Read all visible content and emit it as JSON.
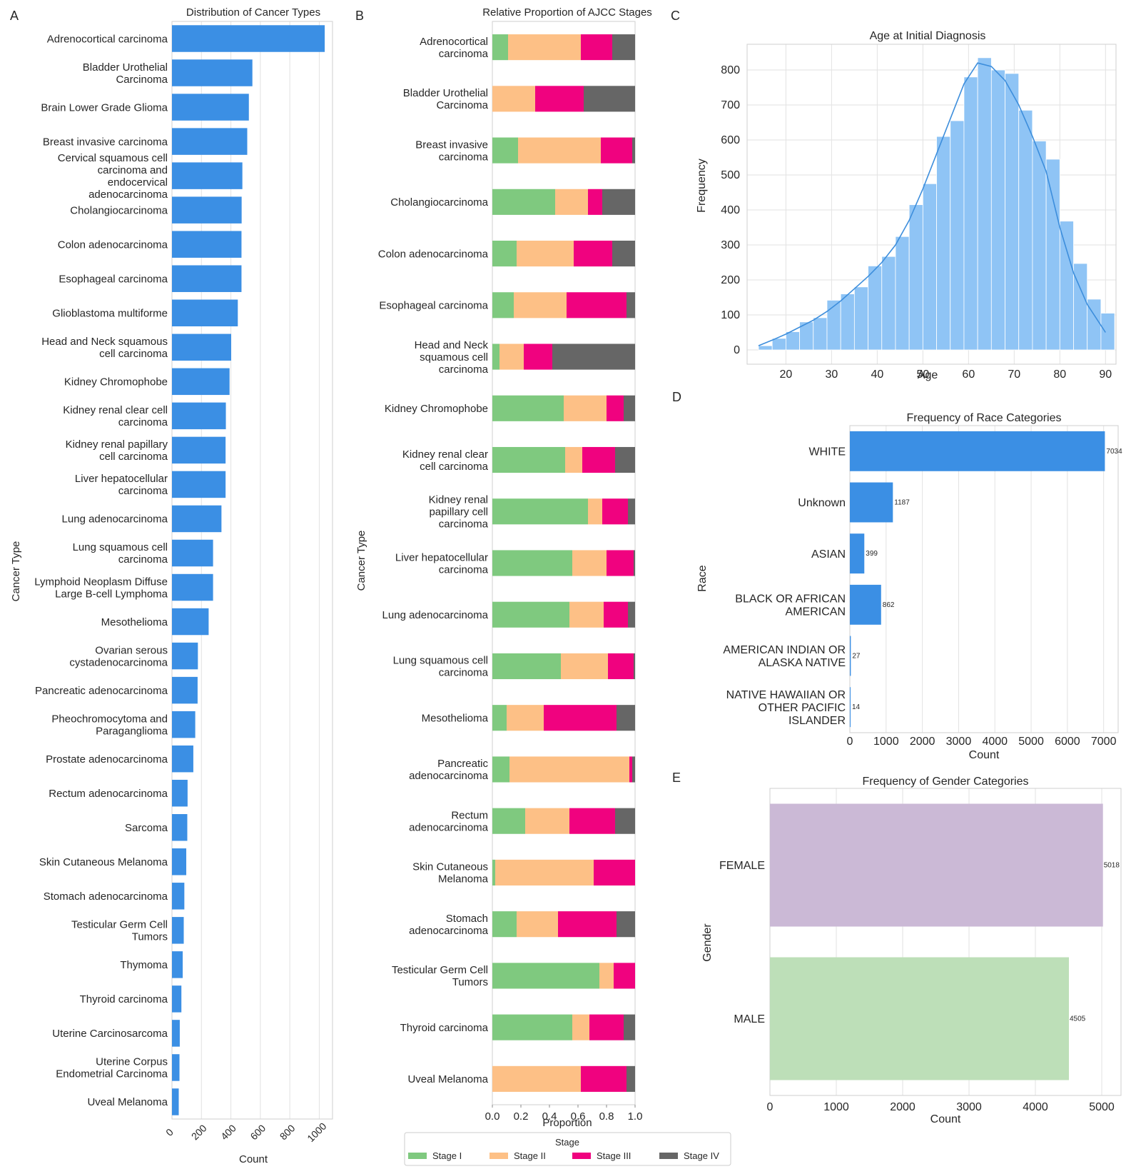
{
  "panels": {
    "A": {
      "letter": "A",
      "chart_data": {
        "type": "bar",
        "orientation": "horizontal",
        "title": "Distribution of Cancer Types",
        "xlabel": "Count",
        "ylabel": "Cancer Type",
        "xlim": [
          0,
          1090
        ],
        "xticks": [
          "0",
          "200",
          "400",
          "600",
          "800",
          "1000"
        ],
        "tick_values": [
          0,
          200,
          400,
          600,
          800,
          1000
        ],
        "grid": true,
        "color": "#3b8fe4",
        "categories": [
          "Adrenocortical carcinoma",
          "Bladder Urothelial\nCarcinoma",
          "Brain Lower Grade Glioma",
          "Breast invasive carcinoma",
          "Cervical squamous cell\ncarcinoma and\nendocervical\nadenocarcinoma",
          "Cholangiocarcinoma",
          "Colon adenocarcinoma",
          "Esophageal carcinoma",
          "Glioblastoma multiforme",
          "Head and Neck squamous\ncell carcinoma",
          "Kidney Chromophobe",
          "Kidney renal clear cell\ncarcinoma",
          "Kidney renal papillary\ncell carcinoma",
          "Liver hepatocellular\ncarcinoma",
          "Lung adenocarcinoma",
          "Lung squamous cell\ncarcinoma",
          "Lymphoid Neoplasm Diffuse\nLarge B-cell Lymphoma",
          "Mesothelioma",
          "Ovarian serous\ncystadenocarcinoma",
          "Pancreatic adenocarcinoma",
          "Pheochromocytoma and\nParaganglioma",
          "Prostate adenocarcinoma",
          "Rectum adenocarcinoma",
          "Sarcoma",
          "Skin Cutaneous Melanoma",
          "Stomach adenocarcinoma",
          "Testicular Germ Cell\nTumors",
          "Thymoma",
          "Thyroid carcinoma",
          "Uterine Carcinosarcoma",
          "Uterine Corpus\nEndometrial Carcinoma",
          "Uveal Melanoma"
        ],
        "values": [
          1037,
          546,
          522,
          511,
          478,
          473,
          472,
          472,
          447,
          402,
          391,
          366,
          364,
          364,
          336,
          279,
          279,
          249,
          176,
          174,
          158,
          145,
          106,
          104,
          97,
          84,
          80,
          73,
          64,
          53,
          51,
          46
        ]
      }
    },
    "B": {
      "letter": "B",
      "chart_data": {
        "type": "bar",
        "orientation": "horizontal",
        "stacked": true,
        "title": "Relative Proportion of AJCC Stages",
        "xlabel": "Proportion",
        "ylabel": "Cancer Type",
        "xlim": [
          0,
          1.0
        ],
        "xticks": [
          "0.0",
          "0.2",
          "0.4",
          "0.6",
          "0.8",
          "1.0"
        ],
        "tick_values": [
          0,
          0.2,
          0.4,
          0.6,
          0.8,
          1.0
        ],
        "grid": false,
        "legend": {
          "title": "Stage",
          "placement": "bottom"
        },
        "categories": [
          "Adrenocortical\ncarcinoma",
          "Bladder Urothelial\nCarcinoma",
          "Breast invasive\ncarcinoma",
          "Cholangiocarcinoma",
          "Colon adenocarcinoma",
          "Esophageal carcinoma",
          "Head and Neck\nsquamous cell\ncarcinoma",
          "Kidney Chromophobe",
          "Kidney renal clear\ncell carcinoma",
          "Kidney renal\npapillary cell\ncarcinoma",
          "Liver hepatocellular\ncarcinoma",
          "Lung adenocarcinoma",
          "Lung squamous cell\ncarcinoma",
          "Mesothelioma",
          "Pancreatic\nadenocarcinoma",
          "Rectum\nadenocarcinoma",
          "Skin Cutaneous\nMelanoma",
          "Stomach\nadenocarcinoma",
          "Testicular Germ Cell\nTumors",
          "Thyroid carcinoma",
          "Uveal Melanoma"
        ],
        "series": [
          {
            "name": "Stage I",
            "color": "#7fc97f",
            "values": [
              0.11,
              0.0,
              0.18,
              0.44,
              0.17,
              0.15,
              0.05,
              0.5,
              0.51,
              0.67,
              0.56,
              0.54,
              0.48,
              0.1,
              0.12,
              0.23,
              0.02,
              0.17,
              0.75,
              0.56,
              0.0
            ]
          },
          {
            "name": "Stage II",
            "color": "#fdc086",
            "values": [
              0.51,
              0.3,
              0.58,
              0.23,
              0.4,
              0.37,
              0.17,
              0.3,
              0.12,
              0.1,
              0.24,
              0.24,
              0.33,
              0.26,
              0.84,
              0.31,
              0.69,
              0.29,
              0.1,
              0.12,
              0.62
            ]
          },
          {
            "name": "Stage III",
            "color": "#f0027f",
            "values": [
              0.22,
              0.34,
              0.22,
              0.1,
              0.27,
              0.42,
              0.2,
              0.12,
              0.23,
              0.18,
              0.19,
              0.17,
              0.18,
              0.51,
              0.02,
              0.32,
              0.29,
              0.41,
              0.15,
              0.24,
              0.32
            ]
          },
          {
            "name": "Stage IV",
            "color": "#666666",
            "values": [
              0.16,
              0.36,
              0.02,
              0.23,
              0.16,
              0.06,
              0.58,
              0.08,
              0.14,
              0.05,
              0.01,
              0.05,
              0.01,
              0.13,
              0.02,
              0.14,
              0.0,
              0.13,
              0.0,
              0.08,
              0.06
            ]
          }
        ]
      }
    },
    "C": {
      "letter": "C",
      "chart_data": {
        "type": "bar",
        "subtype": "histogram",
        "title": "Age at Initial Diagnosis",
        "xlabel": "Age",
        "ylabel": "Frequency",
        "xlim": [
          11.5,
          92.3
        ],
        "ylim": [
          0,
          880
        ],
        "xticks": [
          "20",
          "30",
          "40",
          "50",
          "60",
          "70",
          "80",
          "90"
        ],
        "xtick_values": [
          20,
          30,
          40,
          50,
          60,
          70,
          80,
          90
        ],
        "yticks": [
          "0",
          "100",
          "200",
          "300",
          "400",
          "500",
          "600",
          "700",
          "800"
        ],
        "ytick_values": [
          0,
          100,
          200,
          300,
          400,
          500,
          600,
          700,
          800
        ],
        "grid": true,
        "bar_color": "#8fc4f5",
        "line_color": "#3d8edc",
        "bin_start": 14,
        "bin_width": 3,
        "values": [
          12,
          33,
          52,
          80,
          92,
          142,
          160,
          180,
          240,
          267,
          324,
          415,
          475,
          610,
          655,
          780,
          835,
          800,
          790,
          685,
          597,
          545,
          368,
          247,
          145,
          105
        ],
        "kde_x": [
          14,
          17,
          20,
          23,
          26,
          29,
          32,
          35,
          38,
          41,
          44,
          47,
          50,
          53,
          56,
          59,
          62,
          65,
          68,
          71,
          74,
          77,
          80,
          83,
          86,
          89,
          90
        ],
        "kde_y": [
          12,
          28,
          45,
          65,
          85,
          110,
          140,
          175,
          210,
          250,
          300,
          370,
          460,
          560,
          660,
          760,
          820,
          810,
          770,
          700,
          610,
          510,
          350,
          220,
          130,
          70,
          50
        ]
      }
    },
    "D": {
      "letter": "D",
      "chart_data": {
        "type": "bar",
        "orientation": "horizontal",
        "title": "Frequency of Race Categories",
        "xlabel": "Count",
        "ylabel": "Race",
        "xlim": [
          0,
          7400
        ],
        "xticks": [
          "0",
          "1000",
          "2000",
          "3000",
          "4000",
          "5000",
          "6000",
          "7000"
        ],
        "tick_values": [
          0,
          1000,
          2000,
          3000,
          4000,
          5000,
          6000,
          7000
        ],
        "grid": true,
        "color": "#3b8fe4",
        "categories": [
          "WHITE",
          "Unknown",
          "ASIAN",
          "BLACK OR AFRICAN\nAMERICAN",
          "AMERICAN INDIAN OR\nALASKA NATIVE",
          "NATIVE HAWAIIAN OR\nOTHER PACIFIC\nISLANDER"
        ],
        "values": [
          7034,
          1187,
          399,
          862,
          27,
          14
        ],
        "data_labels": [
          "7034",
          "1187",
          "399",
          "862",
          "27",
          "14"
        ]
      }
    },
    "E": {
      "letter": "E",
      "chart_data": {
        "type": "bar",
        "orientation": "horizontal",
        "title": "Frequency of Gender Categories",
        "xlabel": "Count",
        "ylabel": "Gender",
        "xlim": [
          0,
          5290
        ],
        "xticks": [
          "0",
          "1000",
          "2000",
          "3000",
          "4000",
          "5000"
        ],
        "tick_values": [
          0,
          1000,
          2000,
          3000,
          4000,
          5000
        ],
        "grid": true,
        "categories": [
          "FEMALE",
          "MALE"
        ],
        "values": [
          5018,
          4505
        ],
        "colors": [
          "#cbb9d6",
          "#bddfb8"
        ],
        "data_labels": [
          "5018",
          "4505"
        ]
      }
    }
  }
}
